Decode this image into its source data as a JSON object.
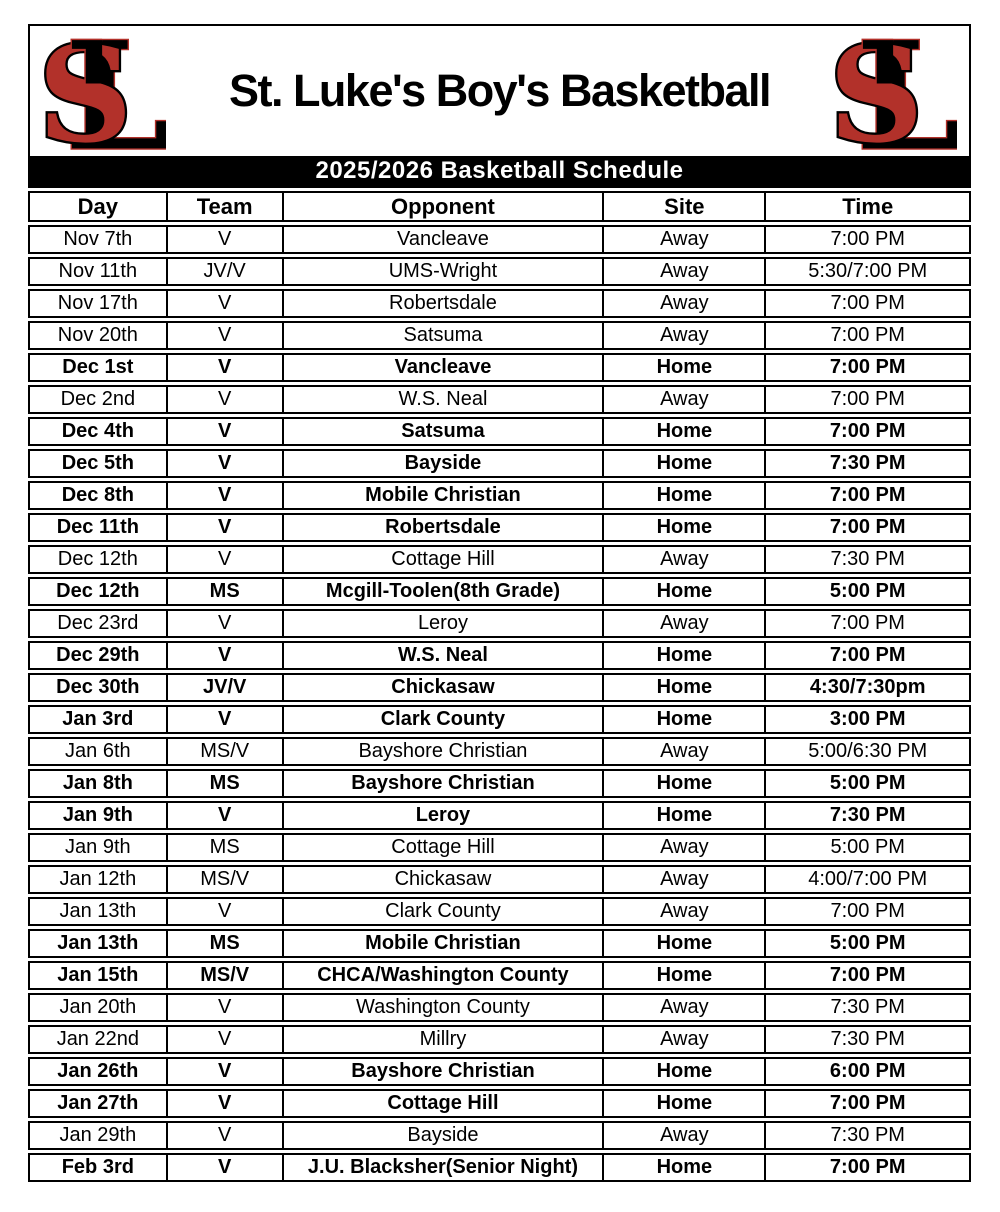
{
  "header": {
    "title": "St. Luke's Boy's Basketball",
    "logo": {
      "letter_s": "S",
      "letter_l": "L"
    }
  },
  "banner": {
    "text": "2025/2026 Basketball Schedule"
  },
  "colors": {
    "logo_red": "#b2312a",
    "logo_black": "#000000",
    "banner_bg": "#000000",
    "banner_text": "#ffffff"
  },
  "schedule": {
    "columns": [
      "Day",
      "Team",
      "Opponent",
      "Site",
      "Time"
    ],
    "rows": [
      {
        "day": "Nov 7th",
        "team": "V",
        "opponent": "Vancleave",
        "site": "Away",
        "time": "7:00 PM"
      },
      {
        "day": "Nov 11th",
        "team": "JV/V",
        "opponent": "UMS-Wright",
        "site": "Away",
        "time": "5:30/7:00 PM"
      },
      {
        "day": "Nov 17th",
        "team": "V",
        "opponent": "Robertsdale",
        "site": "Away",
        "time": "7:00 PM"
      },
      {
        "day": "Nov 20th",
        "team": "V",
        "opponent": "Satsuma",
        "site": "Away",
        "time": "7:00 PM"
      },
      {
        "day": "Dec 1st",
        "team": "V",
        "opponent": "Vancleave",
        "site": "Home",
        "time": "7:00 PM"
      },
      {
        "day": "Dec 2nd",
        "team": "V",
        "opponent": "W.S. Neal",
        "site": "Away",
        "time": "7:00 PM"
      },
      {
        "day": "Dec 4th",
        "team": "V",
        "opponent": "Satsuma",
        "site": "Home",
        "time": "7:00 PM"
      },
      {
        "day": "Dec 5th",
        "team": "V",
        "opponent": "Bayside",
        "site": "Home",
        "time": "7:30 PM"
      },
      {
        "day": "Dec 8th",
        "team": "V",
        "opponent": "Mobile Christian",
        "site": "Home",
        "time": "7:00 PM"
      },
      {
        "day": "Dec 11th",
        "team": "V",
        "opponent": "Robertsdale",
        "site": "Home",
        "time": "7:00 PM"
      },
      {
        "day": "Dec 12th",
        "team": "V",
        "opponent": "Cottage Hill",
        "site": "Away",
        "time": "7:30 PM"
      },
      {
        "day": "Dec 12th",
        "team": "MS",
        "opponent": "Mcgill-Toolen(8th Grade)",
        "site": "Home",
        "time": "5:00 PM"
      },
      {
        "day": "Dec 23rd",
        "team": "V",
        "opponent": "Leroy",
        "site": "Away",
        "time": "7:00 PM"
      },
      {
        "day": "Dec 29th",
        "team": "V",
        "opponent": "W.S. Neal",
        "site": "Home",
        "time": "7:00 PM"
      },
      {
        "day": "Dec 30th",
        "team": "JV/V",
        "opponent": "Chickasaw",
        "site": "Home",
        "time": "4:30/7:30pm"
      },
      {
        "day": "Jan 3rd",
        "team": "V",
        "opponent": "Clark County",
        "site": "Home",
        "time": "3:00 PM"
      },
      {
        "day": "Jan 6th",
        "team": "MS/V",
        "opponent": "Bayshore Christian",
        "site": "Away",
        "time": "5:00/6:30 PM"
      },
      {
        "day": "Jan 8th",
        "team": "MS",
        "opponent": "Bayshore Christian",
        "site": "Home",
        "time": "5:00 PM"
      },
      {
        "day": "Jan 9th",
        "team": "V",
        "opponent": "Leroy",
        "site": "Home",
        "time": "7:30 PM"
      },
      {
        "day": "Jan 9th",
        "team": "MS",
        "opponent": "Cottage Hill",
        "site": "Away",
        "time": "5:00 PM"
      },
      {
        "day": "Jan 12th",
        "team": "MS/V",
        "opponent": "Chickasaw",
        "site": "Away",
        "time": "4:00/7:00 PM"
      },
      {
        "day": "Jan 13th",
        "team": "V",
        "opponent": "Clark County",
        "site": "Away",
        "time": "7:00 PM"
      },
      {
        "day": "Jan 13th",
        "team": "MS",
        "opponent": "Mobile Christian",
        "site": "Home",
        "time": "5:00 PM"
      },
      {
        "day": "Jan 15th",
        "team": "MS/V",
        "opponent": "CHCA/Washington County",
        "site": "Home",
        "time": "7:00 PM"
      },
      {
        "day": "Jan 20th",
        "team": "V",
        "opponent": "Washington County",
        "site": "Away",
        "time": "7:30 PM"
      },
      {
        "day": "Jan 22nd",
        "team": "V",
        "opponent": "Millry",
        "site": "Away",
        "time": "7:30 PM"
      },
      {
        "day": "Jan 26th",
        "team": "V",
        "opponent": "Bayshore Christian",
        "site": "Home",
        "time": "6:00 PM"
      },
      {
        "day": "Jan 27th",
        "team": "V",
        "opponent": "Cottage Hill",
        "site": "Home",
        "time": "7:00 PM"
      },
      {
        "day": "Jan 29th",
        "team": "V",
        "opponent": "Bayside",
        "site": "Away",
        "time": "7:30 PM"
      },
      {
        "day": "Feb 3rd",
        "team": "V",
        "opponent": "J.U. Blacksher(Senior Night)",
        "site": "Home",
        "time": "7:00 PM"
      }
    ]
  }
}
